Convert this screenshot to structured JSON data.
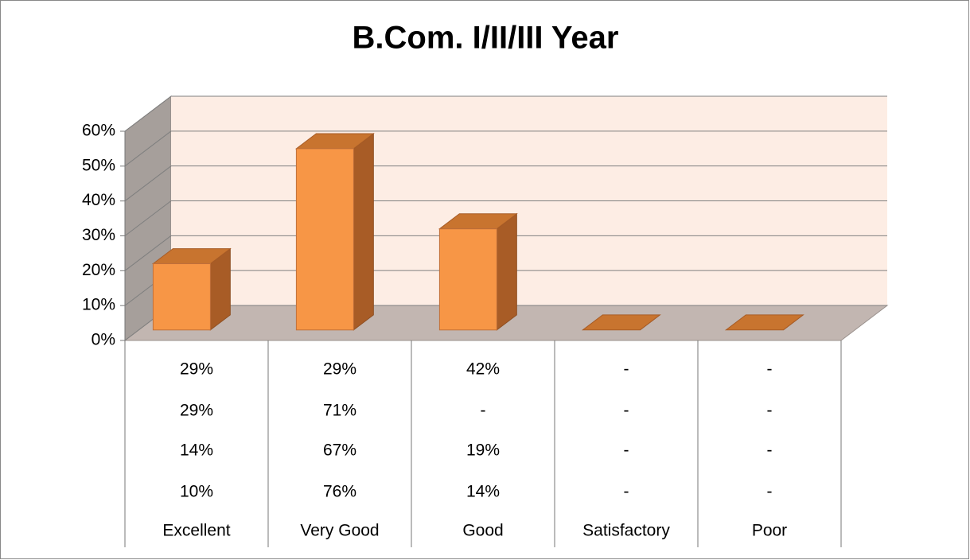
{
  "chart_data": {
    "type": "bar3d",
    "title": "B.Com. I/II/III Year",
    "categories": [
      "Excellent",
      "Very Good",
      "Good",
      "Satisfactory",
      "Poor"
    ],
    "values": [
      19,
      52,
      29,
      0,
      0
    ],
    "color": "#f79646",
    "ylim": [
      0,
      60
    ],
    "yticks": [
      {
        "value": 0,
        "label": "0%"
      },
      {
        "value": 10,
        "label": "10%"
      },
      {
        "value": 20,
        "label": "20%"
      },
      {
        "value": 30,
        "label": "30%"
      },
      {
        "value": 40,
        "label": "40%"
      },
      {
        "value": 50,
        "label": "50%"
      },
      {
        "value": 60,
        "label": "60%"
      }
    ],
    "grid": true,
    "data_table": [
      [
        "29%",
        "29%",
        "42%",
        "-",
        "-"
      ],
      [
        "29%",
        "71%",
        "-",
        "-",
        "-"
      ],
      [
        "14%",
        "67%",
        "19%",
        "-",
        "-"
      ],
      [
        "10%",
        "76%",
        "14%",
        "-",
        "-"
      ]
    ]
  }
}
